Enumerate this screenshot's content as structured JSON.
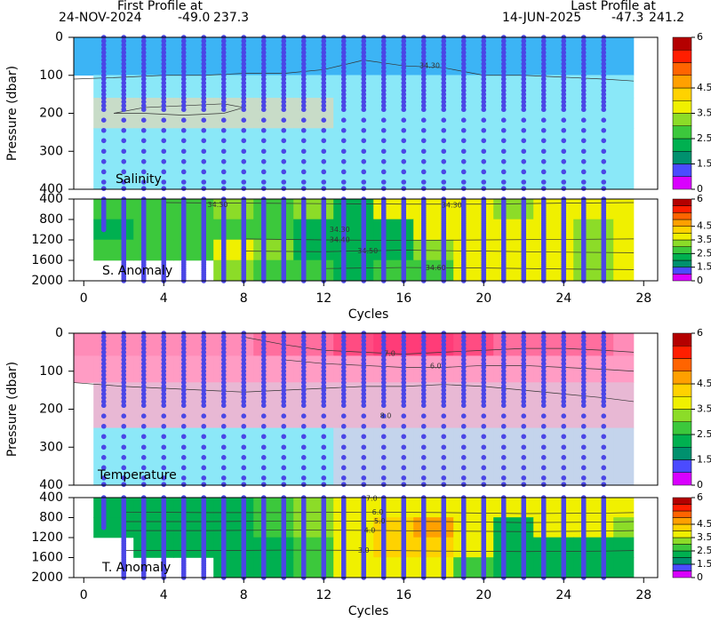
{
  "header": {
    "first_label": "First Profile at",
    "first_date": "24-NOV-2024",
    "first_lat": "-49.0",
    "first_lon": "237.3",
    "last_label": "Last Profile at",
    "last_date": "14-JUN-2025",
    "last_lat": "-47.3",
    "last_lon": "241.2"
  },
  "colorbar": {
    "levels": [
      0,
      0.75,
      1.5,
      2,
      2.5,
      3,
      3.5,
      4,
      4.5,
      5,
      5.5,
      5.75,
      6
    ],
    "colors": [
      "#d900ff",
      "#4b4bff",
      "#00916e",
      "#00b050",
      "#3cc83c",
      "#8cdc28",
      "#f0f000",
      "#ffd200",
      "#ffa000",
      "#ff6400",
      "#ff1e00",
      "#b40000"
    ],
    "ticks": [
      0,
      1.5,
      2.5,
      3.5,
      4.5,
      6
    ]
  },
  "chart_data": [
    {
      "type": "section",
      "title": "Salinity",
      "ylabel": "Pressure (dbar)",
      "xlim": [
        -0.5,
        28.7
      ],
      "ylim": [
        0,
        400
      ],
      "yticks": [
        0,
        100,
        200,
        300,
        400
      ],
      "profile_color": "#4b46e6",
      "cycles": [
        1,
        2,
        3,
        4,
        5,
        6,
        7,
        8,
        9,
        10,
        11,
        12,
        13,
        14,
        15,
        16,
        17,
        18,
        19,
        20,
        21,
        22,
        23,
        24,
        25,
        26
      ],
      "pressures": [
        0,
        10,
        20,
        30,
        40,
        50,
        60,
        70,
        80,
        90,
        100,
        110,
        120,
        130,
        140,
        150,
        160,
        170,
        180,
        190,
        218,
        245,
        272,
        300,
        327,
        354,
        381,
        398
      ],
      "field": {
        "xedges": [
          -0.5,
          0.5,
          2.5,
          4.5,
          6.5,
          8.5,
          10.5,
          12.5,
          14.5,
          16.5,
          18.5,
          20.5,
          22.5,
          24.5,
          26.5,
          27.5
        ],
        "yedges": [
          0,
          100,
          160,
          240,
          400
        ],
        "colors": [
          [
            "#3cb4f5",
            "#3cb4f5",
            "#3cb4f5",
            "#3cb4f5",
            "#3cb4f5",
            "#3cb4f5",
            "#3cb4f5",
            "#3cb4f5",
            "#3cb4f5",
            "#3cb4f5",
            "#3cb4f5",
            "#3cb4f5",
            "#3cb4f5",
            "#3cb4f5",
            "#3cb4f5"
          ],
          [
            null,
            "#8ae8f8",
            "#8ae8f8",
            "#8ae8f8",
            "#8ae8f8",
            "#8ae8f8",
            "#8ae8f8",
            "#8ae8f8",
            "#8ae8f8",
            "#8ae8f8",
            "#8ae8f8",
            "#8ae8f8",
            "#8ae8f8",
            "#8ae8f8",
            "#8ae8f8"
          ],
          [
            null,
            "#c8dcc8",
            "#c8dcc8",
            "#c8dcc8",
            "#c8dcc8",
            "#c8dcc8",
            "#c8dcc8",
            "#8ae8f8",
            "#8ae8f8",
            "#8ae8f8",
            "#8ae8f8",
            "#8ae8f8",
            "#8ae8f8",
            "#8ae8f8",
            "#8ae8f8"
          ],
          [
            null,
            "#8ae8f8",
            "#8ae8f8",
            "#8ae8f8",
            "#8ae8f8",
            "#8ae8f8",
            "#8ae8f8",
            "#8ae8f8",
            "#8ae8f8",
            "#8ae8f8",
            "#8ae8f8",
            "#8ae8f8",
            "#8ae8f8",
            "#8ae8f8",
            "#8ae8f8"
          ]
        ]
      },
      "contours": [
        {
          "x": [
            -0.5,
            2,
            4,
            6,
            8,
            10,
            12,
            14,
            16,
            18,
            20,
            22,
            24,
            26,
            27.5
          ],
          "y": [
            110,
            105,
            100,
            100,
            95,
            95,
            85,
            60,
            75,
            80,
            100,
            100,
            105,
            110,
            115
          ]
        },
        {
          "x": [
            1.5,
            3,
            5,
            7,
            8,
            7,
            5,
            3,
            1.5
          ],
          "y": [
            200,
            185,
            180,
            175,
            185,
            200,
            205,
            200,
            200
          ]
        }
      ],
      "annotations": [
        {
          "text": "34.30",
          "x": 17.3,
          "y": 75
        }
      ]
    },
    {
      "type": "section",
      "title": "S. Anomaly",
      "xlabel": "Cycles",
      "xlim": [
        -0.5,
        28.7
      ],
      "xticks": [
        0,
        4,
        8,
        12,
        16,
        20,
        24,
        28
      ],
      "ylim": [
        400,
        2000
      ],
      "yticks": [
        400,
        800,
        1200,
        1600,
        2000
      ],
      "profile_color": "#4b46e6",
      "cycles": [
        1,
        2,
        3,
        4,
        5,
        6,
        7,
        8,
        9,
        10,
        11,
        12,
        13,
        14,
        15,
        16,
        17,
        18,
        19,
        20,
        21,
        22,
        23,
        24,
        25,
        26
      ],
      "max_pressure": [
        1000,
        2000,
        2000,
        2000,
        2000,
        2000,
        2000,
        2000,
        2000,
        2000,
        2000,
        2000,
        2000,
        2000,
        2000,
        2000,
        2000,
        2000,
        2000,
        2000,
        2000,
        2000,
        2000,
        2000,
        2000,
        2000
      ],
      "pressures": [
        400,
        440,
        480,
        520,
        560,
        600,
        640,
        680,
        720,
        760,
        800,
        840,
        880,
        920,
        960,
        1000,
        1040,
        1080,
        1120,
        1160,
        1200,
        1240,
        1280,
        1320,
        1360,
        1400,
        1440,
        1480,
        1520,
        1560,
        1600,
        1640,
        1680,
        1720,
        1760,
        1800,
        1840,
        1880,
        1920,
        1960,
        2000
      ],
      "field": {
        "xedges": [
          -0.5,
          0.5,
          2.5,
          4.5,
          6.5,
          8.5,
          10.5,
          12.5,
          14.5,
          16.5,
          18.5,
          20.5,
          22.5,
          24.5,
          26.5,
          27.5
        ],
        "yedges": [
          400,
          800,
          1200,
          1600,
          2000
        ],
        "values": [
          [
            null,
            2.7,
            2.7,
            2.7,
            3.2,
            2.7,
            3.2,
            2.2,
            3.7,
            3.7,
            3.7,
            3.2,
            3.7,
            3.7,
            3.7
          ],
          [
            null,
            2.2,
            2.7,
            2.7,
            2.7,
            2.7,
            2.2,
            2.2,
            2.2,
            3.7,
            3.7,
            3.7,
            3.7,
            3.2,
            3.7
          ],
          [
            null,
            2.7,
            2.7,
            2.7,
            3.7,
            3.2,
            2.2,
            2.2,
            2.2,
            3.2,
            3.7,
            3.7,
            3.7,
            3.2,
            3.7
          ],
          [
            null,
            null,
            null,
            null,
            3.2,
            2.7,
            2.7,
            2.2,
            2.7,
            2.7,
            3.7,
            3.7,
            3.7,
            3.2,
            3.7
          ]
        ]
      },
      "contours": [
        {
          "x": [
            4,
            8,
            12,
            16,
            20,
            24,
            27.5
          ],
          "y": [
            470,
            480,
            490,
            500,
            500,
            480,
            470
          ]
        },
        {
          "x": [
            8,
            12,
            16,
            20,
            24,
            27.5
          ],
          "y": [
            1180,
            1200,
            1210,
            1200,
            1190,
            1180
          ]
        },
        {
          "x": [
            8,
            12,
            16,
            20,
            24,
            27.5
          ],
          "y": [
            1420,
            1430,
            1400,
            1420,
            1440,
            1450
          ]
        },
        {
          "x": [
            12,
            16,
            20,
            24,
            27.5
          ],
          "y": [
            1760,
            1740,
            1750,
            1770,
            1780
          ]
        }
      ],
      "annotations": [
        {
          "text": "34.30",
          "x": 6.7,
          "y": 510
        },
        {
          "text": "34.30",
          "x": 18.4,
          "y": 520
        },
        {
          "text": "34.30",
          "x": 12.8,
          "y": 1004
        },
        {
          "text": "34.40",
          "x": 12.8,
          "y": 1200
        },
        {
          "text": "34.50",
          "x": 14.2,
          "y": 1420
        },
        {
          "text": "34.60",
          "x": 17.6,
          "y": 1750
        }
      ]
    },
    {
      "type": "section",
      "title": "Temperature",
      "ylabel": "Pressure (dbar)",
      "xlim": [
        -0.5,
        28.7
      ],
      "ylim": [
        0,
        400
      ],
      "yticks": [
        0,
        100,
        200,
        300,
        400
      ],
      "profile_color": "#4b46e6",
      "cycles": [
        1,
        2,
        3,
        4,
        5,
        6,
        7,
        8,
        9,
        10,
        11,
        12,
        13,
        14,
        15,
        16,
        17,
        18,
        19,
        20,
        21,
        22,
        23,
        24,
        25,
        26
      ],
      "pressures": [
        0,
        10,
        20,
        30,
        40,
        50,
        60,
        70,
        80,
        90,
        100,
        110,
        120,
        130,
        140,
        150,
        160,
        170,
        180,
        190,
        218,
        245,
        272,
        300,
        327,
        354,
        381,
        398
      ],
      "field": {
        "xedges": [
          -0.5,
          0.5,
          2.5,
          4.5,
          6.5,
          8.5,
          10.5,
          12.5,
          14.5,
          16.5,
          18.5,
          20.5,
          22.5,
          24.5,
          26.5,
          27.5
        ],
        "yedges": [
          0,
          60,
          130,
          250,
          400
        ],
        "colors": [
          [
            "#ff8cb8",
            "#ff8cb8",
            "#ff8cb8",
            "#ff8cb8",
            "#ff8cb8",
            "#ff6e9e",
            "#ff6e9e",
            "#ff4c82",
            "#ff3c78",
            "#ff3c78",
            "#ff4c82",
            "#ff6e9e",
            "#ff6e9e",
            "#ff6e9e",
            "#ff8cb8"
          ],
          [
            "#ff9cc4",
            "#ff9cc4",
            "#ff9cc4",
            "#ff9cc4",
            "#ff9cc4",
            "#ff9cc4",
            "#ff9cc4",
            "#ff9cc4",
            "#ff9cc4",
            "#ff9cc4",
            "#ff9cc4",
            "#ff9cc4",
            "#ff9cc4",
            "#ff9cc4",
            "#ff9cc4"
          ],
          [
            null,
            "#e8b8d4",
            "#e8b8d4",
            "#e8b8d4",
            "#e8b8d4",
            "#e8b8d4",
            "#e8b8d4",
            "#e8b8d4",
            "#e8b8d4",
            "#e8b8d4",
            "#e8b8d4",
            "#e8b8d4",
            "#e8b8d4",
            "#e8b8d4",
            "#e8b8d4"
          ],
          [
            null,
            "#8ce8f8",
            "#8ce8f8",
            "#8ce8f8",
            "#8ce8f8",
            "#8ce8f8",
            "#8ce8f8",
            "#c4d4ec",
            "#c4d4ec",
            "#c4d4ec",
            "#c4d4ec",
            "#c4d4ec",
            "#c4d4ec",
            "#c4d4ec",
            "#c4d4ec"
          ]
        ]
      },
      "contours": [
        {
          "x": [
            8,
            10,
            12,
            14,
            16,
            18,
            20,
            22,
            24,
            26,
            27.5
          ],
          "y": [
            10,
            30,
            45,
            50,
            55,
            50,
            45,
            40,
            40,
            45,
            50
          ]
        },
        {
          "x": [
            10,
            12,
            14,
            16,
            18,
            20,
            22,
            24,
            26,
            27.5
          ],
          "y": [
            70,
            80,
            85,
            90,
            90,
            85,
            85,
            90,
            95,
            100
          ]
        },
        {
          "x": [
            -0.5,
            2,
            4,
            6,
            8,
            10,
            12,
            14,
            16,
            18,
            20,
            22,
            24,
            26,
            27.5
          ],
          "y": [
            130,
            140,
            145,
            150,
            155,
            150,
            145,
            140,
            140,
            135,
            140,
            150,
            160,
            170,
            180
          ]
        }
      ],
      "annotations": [
        {
          "text": "7.0",
          "x": 15.3,
          "y": 54
        },
        {
          "text": "6.0",
          "x": 17.6,
          "y": 87
        },
        {
          "text": "8.0",
          "x": 15.1,
          "y": 217
        }
      ]
    },
    {
      "type": "section",
      "title": "T. Anomaly",
      "xlabel": "Cycles",
      "xlim": [
        -0.5,
        28.7
      ],
      "xticks": [
        0,
        4,
        8,
        12,
        16,
        20,
        24,
        28
      ],
      "ylim": [
        400,
        2000
      ],
      "yticks": [
        400,
        800,
        1200,
        1600,
        2000
      ],
      "profile_color": "#4b46e6",
      "cycles": [
        1,
        2,
        3,
        4,
        5,
        6,
        7,
        8,
        9,
        10,
        11,
        12,
        13,
        14,
        15,
        16,
        17,
        18,
        19,
        20,
        21,
        22,
        23,
        24,
        25,
        26
      ],
      "max_pressure": [
        1000,
        2000,
        2000,
        2000,
        2000,
        2000,
        2000,
        2000,
        2000,
        2000,
        2000,
        2000,
        2000,
        2000,
        2000,
        2000,
        2000,
        2000,
        2000,
        2000,
        2000,
        2000,
        2000,
        2000,
        2000,
        2000
      ],
      "pressures": [
        400,
        440,
        480,
        520,
        560,
        600,
        640,
        680,
        720,
        760,
        800,
        840,
        880,
        920,
        960,
        1000,
        1040,
        1080,
        1120,
        1160,
        1200,
        1240,
        1280,
        1320,
        1360,
        1400,
        1440,
        1480,
        1520,
        1560,
        1600,
        1640,
        1680,
        1720,
        1760,
        1800,
        1840,
        1880,
        1920,
        1960,
        2000
      ],
      "field": {
        "xedges": [
          -0.5,
          0.5,
          2.5,
          4.5,
          6.5,
          8.5,
          10.5,
          12.5,
          14.5,
          16.5,
          18.5,
          20.5,
          22.5,
          24.5,
          26.5,
          27.5
        ],
        "yedges": [
          400,
          800,
          1200,
          1600,
          2000
        ],
        "values": [
          [
            null,
            2.2,
            2.2,
            2.2,
            2.2,
            2.7,
            3.2,
            3.7,
            3.7,
            3.7,
            3.7,
            3.7,
            3.7,
            3.7,
            3.7
          ],
          [
            null,
            2.2,
            2.2,
            2.2,
            2.2,
            2.7,
            3.2,
            3.7,
            4.2,
            4.7,
            3.7,
            2.2,
            3.7,
            3.7,
            3.2
          ],
          [
            null,
            null,
            2.2,
            2.2,
            2.2,
            2.2,
            2.7,
            3.7,
            4.2,
            4.2,
            3.7,
            2.2,
            2.2,
            2.2,
            2.2
          ],
          [
            null,
            null,
            null,
            null,
            2.2,
            2.2,
            2.7,
            3.7,
            3.7,
            3.7,
            2.7,
            2.2,
            2.2,
            2.2,
            2.2
          ]
        ]
      },
      "contours": [
        {
          "x": [
            2,
            6,
            10,
            14,
            18,
            22,
            26,
            27.5
          ],
          "y": [
            690,
            700,
            700,
            690,
            700,
            720,
            710,
            700
          ]
        },
        {
          "x": [
            2,
            6,
            10,
            14,
            18,
            22,
            26,
            27.5
          ],
          "y": [
            880,
            880,
            870,
            873,
            880,
            900,
            890,
            880
          ]
        },
        {
          "x": [
            2,
            6,
            10,
            14,
            18,
            22,
            26,
            27.5
          ],
          "y": [
            1060,
            1060,
            1050,
            1055,
            1070,
            1080,
            1070,
            1060
          ]
        },
        {
          "x": [
            2,
            6,
            10,
            14,
            18,
            22,
            26,
            27.5
          ],
          "y": [
            1460,
            1460,
            1450,
            1455,
            1470,
            1480,
            1470,
            1460
          ]
        }
      ],
      "annotations": [
        {
          "text": "7.0",
          "x": 14.4,
          "y": 420
        },
        {
          "text": "6.0",
          "x": 14.7,
          "y": 690
        },
        {
          "text": "5.0",
          "x": 14.8,
          "y": 873
        },
        {
          "text": "4.0",
          "x": 14.3,
          "y": 1055
        },
        {
          "text": "3.0",
          "x": 14.0,
          "y": 1455
        }
      ]
    }
  ]
}
